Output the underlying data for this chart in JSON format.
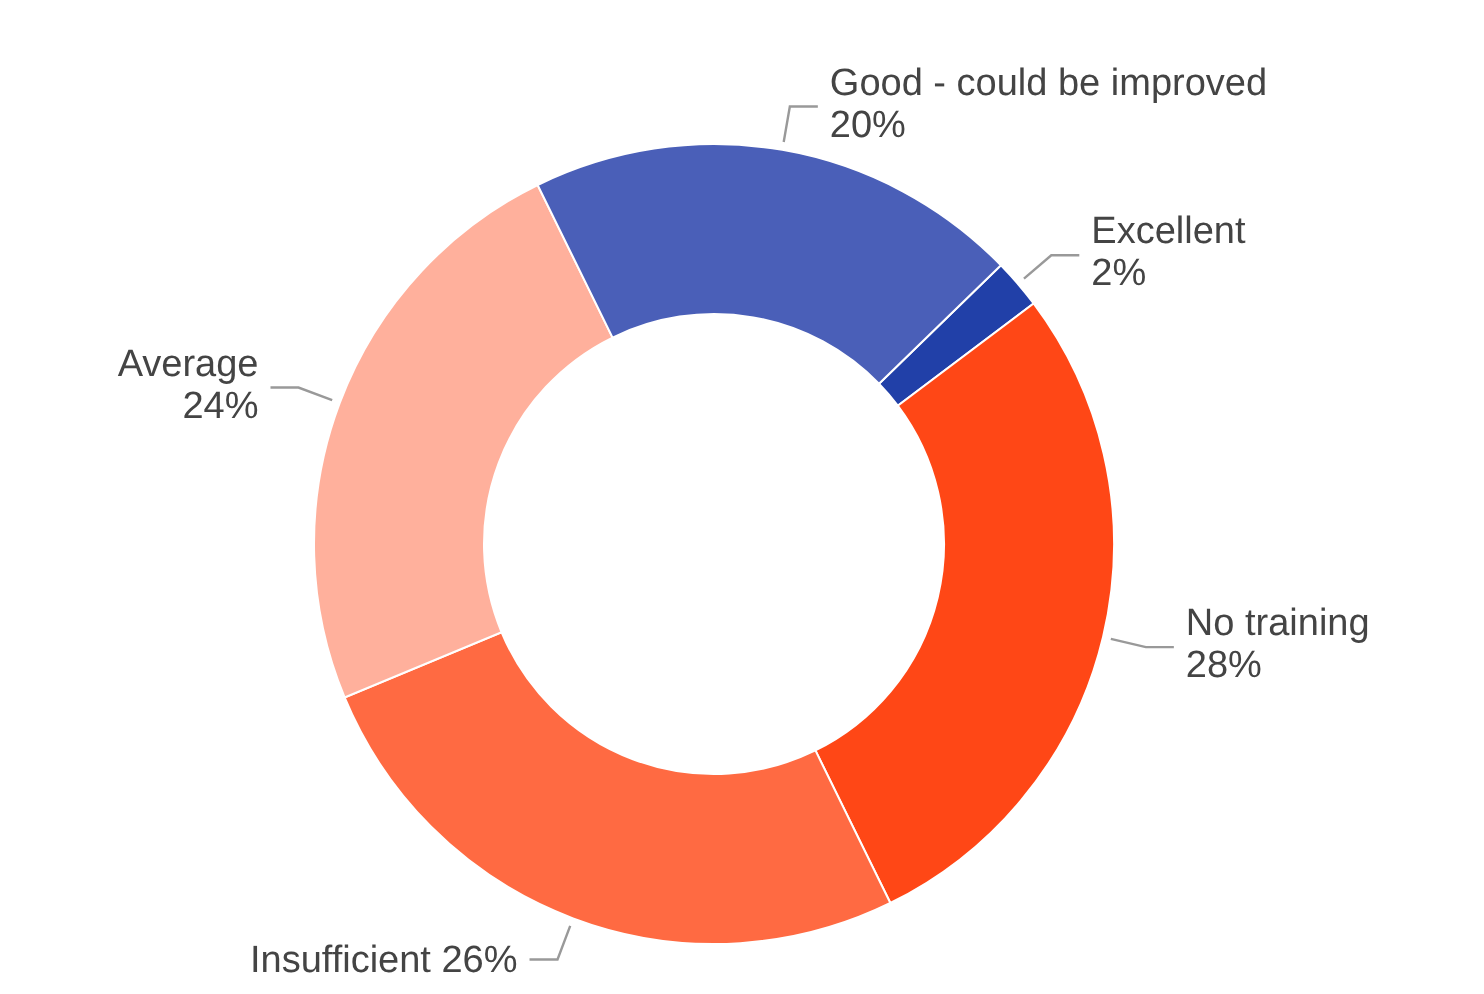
{
  "chart_data": {
    "type": "donut",
    "categories": [
      "Excellent",
      "No training",
      "Insufficient",
      "Average",
      "Good - could be improved"
    ],
    "values": [
      2,
      28,
      26,
      24,
      20
    ],
    "value_labels": [
      "2%",
      "28%",
      "26%",
      "24%",
      "20%"
    ],
    "colors": [
      "#2140a8",
      "#ff4716",
      "#ff6a42",
      "#ffb09c",
      "#4a5fb8"
    ]
  }
}
